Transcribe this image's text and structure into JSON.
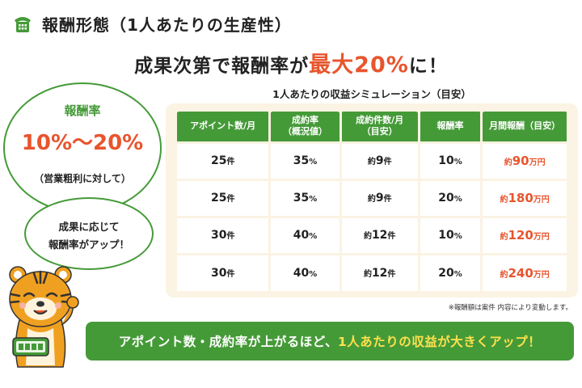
{
  "title": "報酬形態（1人あたりの生産性）",
  "headline": {
    "pre": "成果次第で報酬率が",
    "highlight": "最大20%",
    "post": "に！"
  },
  "left_bubble": {
    "label": "報酬率",
    "rate": "10%～20%",
    "sub": "（営業粗利に対して）"
  },
  "small_bubble": {
    "line1": "成果に応じて",
    "line2": "報酬率がアップ！"
  },
  "table": {
    "caption": "1人あたりの収益シミュレーション（目安）",
    "headers": [
      {
        "l1": "アポイント数/月",
        "l2": ""
      },
      {
        "l1": "成約率",
        "l2": "（概況値）"
      },
      {
        "l1": "成約件数/月",
        "l2": "（目安）"
      },
      {
        "l1": "報酬率",
        "l2": ""
      },
      {
        "l1": "月間報酬（目安）",
        "l2": ""
      }
    ],
    "rows": [
      {
        "appointments": "25",
        "appointments_unit": "件",
        "rate": "35",
        "rate_unit": "%",
        "deals_prefix": "約",
        "deals": "9",
        "deals_unit": "件",
        "reward_rate": "10",
        "reward_rate_unit": "%",
        "pay_prefix": "約",
        "pay": "90",
        "pay_unit": "万円"
      },
      {
        "appointments": "25",
        "appointments_unit": "件",
        "rate": "35",
        "rate_unit": "%",
        "deals_prefix": "約",
        "deals": "9",
        "deals_unit": "件",
        "reward_rate": "20",
        "reward_rate_unit": "%",
        "pay_prefix": "約",
        "pay": "180",
        "pay_unit": "万円"
      },
      {
        "appointments": "30",
        "appointments_unit": "件",
        "rate": "40",
        "rate_unit": "%",
        "deals_prefix": "約",
        "deals": "12",
        "deals_unit": "件",
        "reward_rate": "10",
        "reward_rate_unit": "%",
        "pay_prefix": "約",
        "pay": "120",
        "pay_unit": "万円"
      },
      {
        "appointments": "30",
        "appointments_unit": "件",
        "rate": "40",
        "rate_unit": "%",
        "deals_prefix": "約",
        "deals": "12",
        "deals_unit": "件",
        "reward_rate": "20",
        "reward_rate_unit": "%",
        "pay_prefix": "約",
        "pay": "240",
        "pay_unit": "万円"
      }
    ]
  },
  "note": "※報酬額は案件 内容により変動します。",
  "banner": {
    "pre": "アポイント数・成約率が上がるほど、",
    "highlight": "1人あたりの収益が大きくアップ！"
  },
  "colors": {
    "green": "#459a38",
    "orange": "#e8552d",
    "yellow": "#ffe14d",
    "table_bg": "#fbf3e3"
  },
  "icons": {
    "title": "telephone-icon",
    "mascot": "tiger-mascot"
  }
}
